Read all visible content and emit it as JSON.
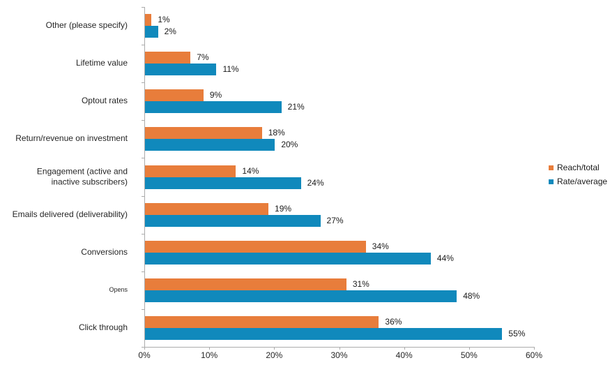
{
  "chart_data": {
    "type": "bar",
    "orientation": "horizontal",
    "title": "",
    "categories": [
      "Other (please specify)",
      "Lifetime value",
      "Optout rates",
      "Return/revenue on investment",
      "Engagement (active and\ninactive subscribers)",
      "Emails delivered (deliverability)",
      "Conversions",
      "Opens",
      "Click through"
    ],
    "series": [
      {
        "name": "Reach/total",
        "color": "#e87d3b",
        "values": [
          1,
          7,
          9,
          18,
          14,
          19,
          34,
          31,
          36
        ]
      },
      {
        "name": "Rate/average",
        "color": "#1089bc",
        "values": [
          2,
          11,
          21,
          20,
          24,
          27,
          44,
          48,
          55
        ]
      }
    ],
    "value_suffix": "%",
    "xlim": [
      0,
      60
    ],
    "x_ticks": [
      "0%",
      "10%",
      "20%",
      "30%",
      "40%",
      "50%",
      "60%"
    ],
    "legend_position": "right",
    "grid": false,
    "axis_color": "#ababab"
  }
}
